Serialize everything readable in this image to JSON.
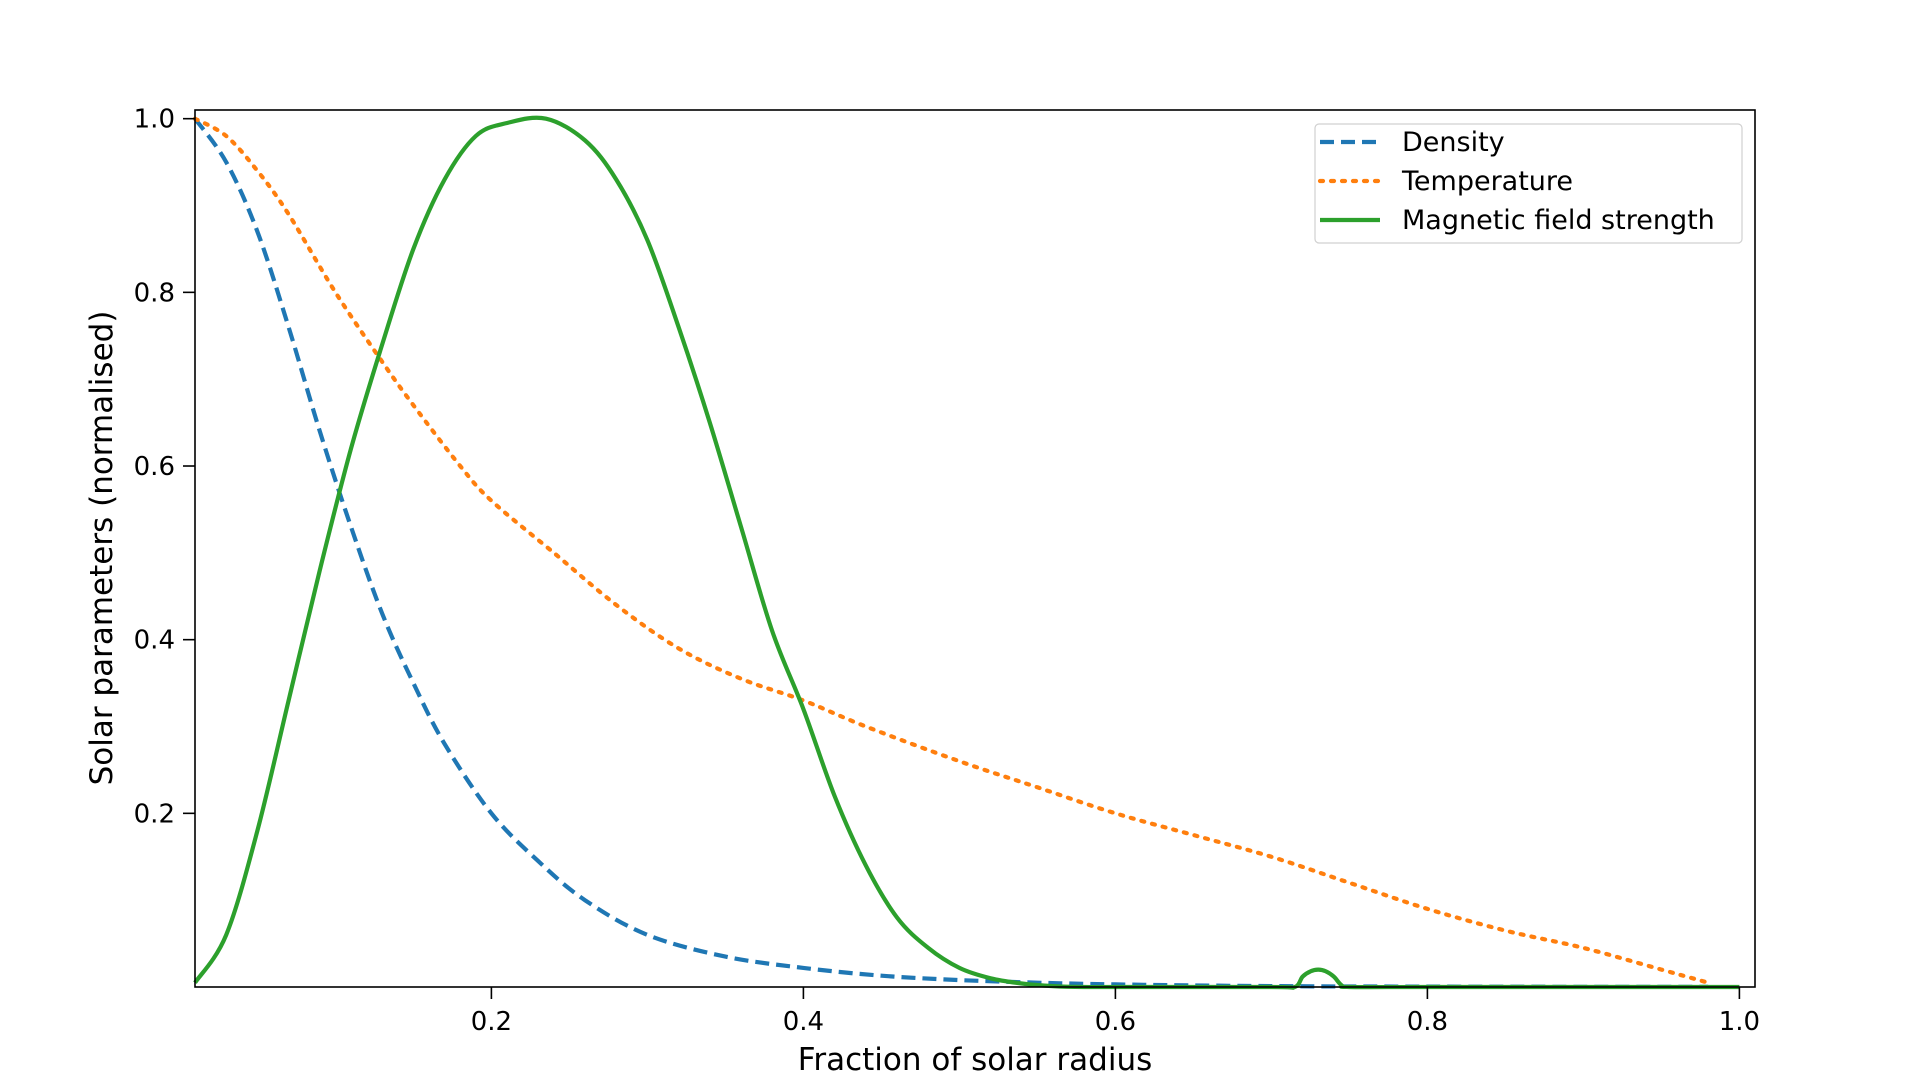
{
  "chart_data": {
    "type": "line",
    "title": "",
    "xlabel": "Fraction of solar radius",
    "ylabel": "Solar parameters (normalised)",
    "xlim": [
      0.01,
      1.01
    ],
    "ylim": [
      0.0,
      1.01
    ],
    "xticks": [
      0.2,
      0.4,
      0.6,
      0.8,
      1.0
    ],
    "xtick_labels": [
      "0.2",
      "0.4",
      "0.6",
      "0.8",
      "1.0"
    ],
    "yticks": [
      0.2,
      0.4,
      0.6,
      0.8,
      1.0
    ],
    "ytick_labels": [
      "0.2",
      "0.4",
      "0.6",
      "0.8",
      "1.0"
    ],
    "grid": false,
    "legend_position": "top-right",
    "series": [
      {
        "name": "Density",
        "color": "#1f77b4",
        "style": "dashed",
        "x": [
          0.01,
          0.03,
          0.05,
          0.07,
          0.09,
          0.11,
          0.13,
          0.15,
          0.17,
          0.2,
          0.23,
          0.26,
          0.3,
          0.35,
          0.4,
          0.45,
          0.5,
          0.55,
          0.6,
          0.7,
          0.8,
          0.9,
          0.98
        ],
        "y": [
          1.0,
          0.95,
          0.87,
          0.76,
          0.64,
          0.53,
          0.43,
          0.35,
          0.28,
          0.2,
          0.145,
          0.1,
          0.06,
          0.035,
          0.022,
          0.013,
          0.008,
          0.005,
          0.003,
          0.001,
          0.0005,
          0.0002,
          0.0001
        ]
      },
      {
        "name": "Temperature",
        "color": "#ff7f0e",
        "style": "dotted",
        "x": [
          0.01,
          0.03,
          0.05,
          0.07,
          0.1,
          0.13,
          0.15,
          0.18,
          0.2,
          0.24,
          0.28,
          0.32,
          0.36,
          0.4,
          0.44,
          0.5,
          0.55,
          0.6,
          0.65,
          0.7,
          0.75,
          0.8,
          0.85,
          0.9,
          0.95,
          0.98
        ],
        "y": [
          1.0,
          0.98,
          0.94,
          0.89,
          0.8,
          0.72,
          0.67,
          0.6,
          0.56,
          0.5,
          0.44,
          0.39,
          0.355,
          0.33,
          0.3,
          0.26,
          0.23,
          0.2,
          0.175,
          0.15,
          0.12,
          0.09,
          0.065,
          0.045,
          0.02,
          0.005
        ]
      },
      {
        "name": "Magnetic field strength",
        "color": "#2ca02c",
        "style": "solid",
        "x": [
          0.01,
          0.03,
          0.05,
          0.07,
          0.09,
          0.11,
          0.13,
          0.15,
          0.17,
          0.19,
          0.21,
          0.235,
          0.26,
          0.28,
          0.3,
          0.32,
          0.34,
          0.36,
          0.38,
          0.4,
          0.42,
          0.44,
          0.46,
          0.48,
          0.5,
          0.52,
          0.54,
          0.56,
          0.58,
          0.6,
          0.7,
          0.715,
          0.72,
          0.725,
          0.73,
          0.735,
          0.74,
          0.745,
          0.75,
          0.8,
          0.9,
          1.0
        ],
        "y": [
          0.005,
          0.06,
          0.18,
          0.33,
          0.48,
          0.62,
          0.74,
          0.85,
          0.93,
          0.98,
          0.995,
          1.0,
          0.975,
          0.93,
          0.86,
          0.76,
          0.65,
          0.53,
          0.41,
          0.32,
          0.22,
          0.14,
          0.08,
          0.045,
          0.022,
          0.01,
          0.004,
          0.001,
          0.0,
          0.0,
          0.0,
          0.0,
          0.012,
          0.018,
          0.02,
          0.018,
          0.012,
          0.002,
          0.0,
          0.0,
          0.0,
          0.0
        ]
      }
    ]
  }
}
